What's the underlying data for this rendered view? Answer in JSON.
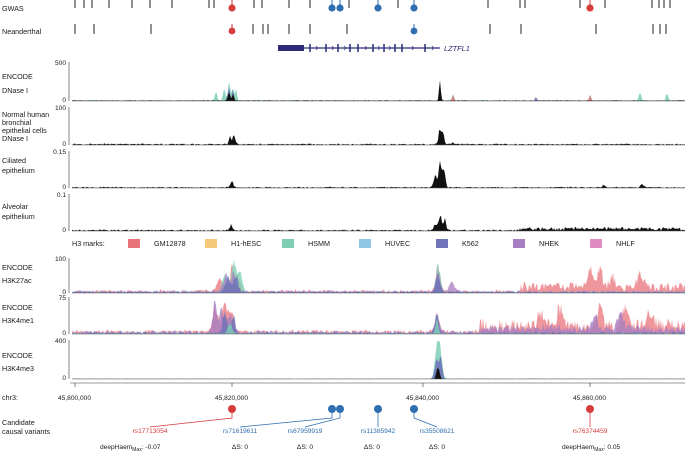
{
  "tracks": {
    "gwas": "GWAS",
    "neanderthal": "Neanderthal",
    "gene": "LZTFL1",
    "encode_dnase": {
      "line1": "ENCODE",
      "line2": "DNase I",
      "ymax": "500",
      "ymin": "0"
    },
    "nhbe": {
      "line1": "Normal human",
      "line2": "bronchial",
      "line3": "epithelial cells",
      "line4": "DNase I",
      "ymax": "100",
      "ymin": "0"
    },
    "ciliated": {
      "line1": "Ciliated",
      "line2": "epithelium",
      "ymax": "0.15",
      "ymin": "0"
    },
    "alveolar": {
      "line1": "Alveolar",
      "line2": "epithelium",
      "ymax": "0.1",
      "ymin": "0"
    },
    "h3k27ac": {
      "line1": "ENCODE",
      "line2": "H3K27ac",
      "ymax": "100",
      "ymin": "0"
    },
    "h3k4me1": {
      "line1": "ENCODE",
      "line2": "H3K4me1",
      "ymax": "75",
      "ymin": "0"
    },
    "h3k4me3": {
      "line1": "ENCODE",
      "line2": "H3K4me3",
      "ymax": "400",
      "ymin": "0"
    }
  },
  "legend": {
    "title": "H3 marks:",
    "items": [
      {
        "label": "GM12878",
        "color": "#e8737a"
      },
      {
        "label": "H1-hESC",
        "color": "#f5c87a"
      },
      {
        "label": "HSMM",
        "color": "#7fcfb7"
      },
      {
        "label": "HUVEC",
        "color": "#8ec6e4"
      },
      {
        "label": "K562",
        "color": "#6f73b8"
      },
      {
        "label": "NHEK",
        "color": "#a87dc2"
      },
      {
        "label": "NHLF",
        "color": "#e08ac4"
      }
    ]
  },
  "axis": {
    "chrom": "chr3:",
    "ticks": [
      "45,800,000",
      "45,820,000",
      "45,840,000",
      "45,860,000"
    ]
  },
  "variants": {
    "section_label_1": "Candidate",
    "section_label_2": "causal variants",
    "items": [
      {
        "id": "rs17713054",
        "score_prefix": "deepHaem",
        "score_sub": "Max",
        "score_value": ": -0.07",
        "color": "#d63c3c"
      },
      {
        "id": "rs71619611",
        "score_prefix": "ΔS: 0",
        "color": "#2f6fb0"
      },
      {
        "id": "rs67959919",
        "score_prefix": "ΔS: 0",
        "color": "#2f6fb0"
      },
      {
        "id": "rs11385942",
        "score_prefix": "ΔS: 0",
        "color": "#2f6fb0"
      },
      {
        "id": "rs35508621",
        "score_prefix": "ΔS: 0",
        "color": "#2f6fb0"
      },
      {
        "id": "rs76374459",
        "score_prefix": "deepHaem",
        "score_sub": "Max",
        "score_value": ": 0.05",
        "color": "#d63c3c"
      }
    ]
  },
  "colors": {
    "red": "#d63c3c",
    "blue": "#2f6fb0",
    "black": "#111111",
    "gene": "#2b2b7a"
  }
}
